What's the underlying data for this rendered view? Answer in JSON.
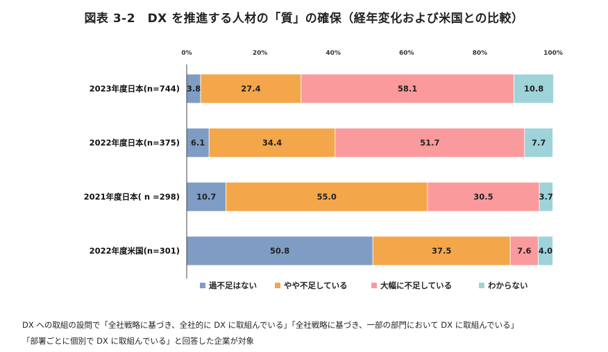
{
  "title": "図表 3-2　DX を推進する人材の「質」の確保（経年変化および米国との比較）",
  "note_lines": [
    "DX への取組の設問で「全社戦略に基づき、全社的に DX に取組んでいる」「全社戦略に基づき、一部の部門において DX に取組んでいる」",
    "「部署ごとに個別で DX に取組んでいる」と回答した企業が対象"
  ],
  "chart_data": {
    "type": "bar",
    "orientation": "horizontal",
    "stacked": true,
    "normalized_percent": true,
    "title": "図表 3-2　DX を推進する人材の「質」の確保（経年変化および米国との比較）",
    "xlabel": "",
    "ylabel": "",
    "xlim": [
      0,
      100
    ],
    "x_ticks": [
      "0%",
      "20%",
      "40%",
      "60%",
      "80%",
      "100%"
    ],
    "categories": [
      "2023年度日本(n=744)",
      "2022年度日本(n=375)",
      "2021年度日本( n =298)",
      "2022年度米国(n=301)"
    ],
    "series": [
      {
        "name": "過不足はない",
        "color": "#7f9cc4",
        "values": [
          3.8,
          6.1,
          10.7,
          50.8
        ]
      },
      {
        "name": "やや不足している",
        "color": "#f4a64a",
        "values": [
          27.4,
          34.4,
          55.0,
          37.5
        ]
      },
      {
        "name": "大幅に不足している",
        "color": "#fb9a9c",
        "values": [
          58.1,
          51.7,
          30.5,
          7.6
        ]
      },
      {
        "name": "わからない",
        "color": "#9ed3da",
        "values": [
          10.8,
          7.7,
          3.7,
          4.0
        ]
      }
    ],
    "data_labels": [
      [
        "3.8",
        "27.4",
        "58.1",
        "10.8"
      ],
      [
        "6.1",
        "34.4",
        "51.7",
        "7.7"
      ],
      [
        "10.7",
        "55.0",
        "30.5",
        "3.7"
      ],
      [
        "50.8",
        "37.5",
        "7.6",
        "4.0"
      ]
    ],
    "legend_position": "bottom",
    "grid": false
  }
}
